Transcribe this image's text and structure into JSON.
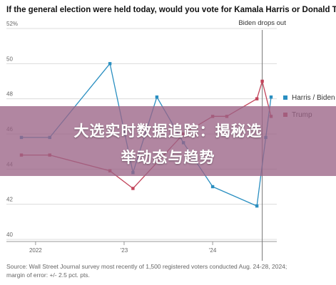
{
  "chart_data": {
    "type": "line",
    "title": "If the general election were held today, would you vote for Kamala Harris or Donald Trump?",
    "x_tick_labels": [
      "2022",
      "'23",
      "'24"
    ],
    "y_ticks": [
      40,
      42,
      44,
      46,
      48,
      50,
      52
    ],
    "y_tick_labels": [
      "40",
      "42",
      "44",
      "46",
      "48",
      "50",
      "52%"
    ],
    "ylim": [
      40,
      52
    ],
    "grid": true,
    "annotation": {
      "label": "Biden drops out",
      "x": 2024.56
    },
    "legend_position": "right",
    "series": [
      {
        "name": "Harris / Biden",
        "color": "#2a8fc1",
        "x": [
          2021.84,
          2022.16,
          2022.84,
          2023.1,
          2023.37,
          2023.67,
          2024.0,
          2024.5,
          2024.6,
          2024.66
        ],
        "values": [
          45.8,
          45.8,
          50.0,
          43.8,
          48.1,
          45.5,
          43.0,
          41.9,
          45.8,
          48.1
        ]
      },
      {
        "name": "Trump",
        "color": "#c2445a",
        "x": [
          2021.84,
          2022.16,
          2022.84,
          2023.1,
          2023.67,
          2024.0,
          2024.16,
          2024.5,
          2024.56,
          2024.66
        ],
        "values": [
          44.8,
          44.8,
          43.9,
          42.9,
          46.0,
          47.0,
          47.0,
          48.0,
          49.0,
          47.0
        ]
      }
    ],
    "source": "Source: Wall Street Journal survey most recently of 1,500 registered voters conducted Aug. 24-28, 2024; margin of error: +/- 2.5 pct. pts."
  },
  "overlay": {
    "line1": "大选实时数据追踪：揭秘选",
    "line2": "举动态与趋势"
  }
}
